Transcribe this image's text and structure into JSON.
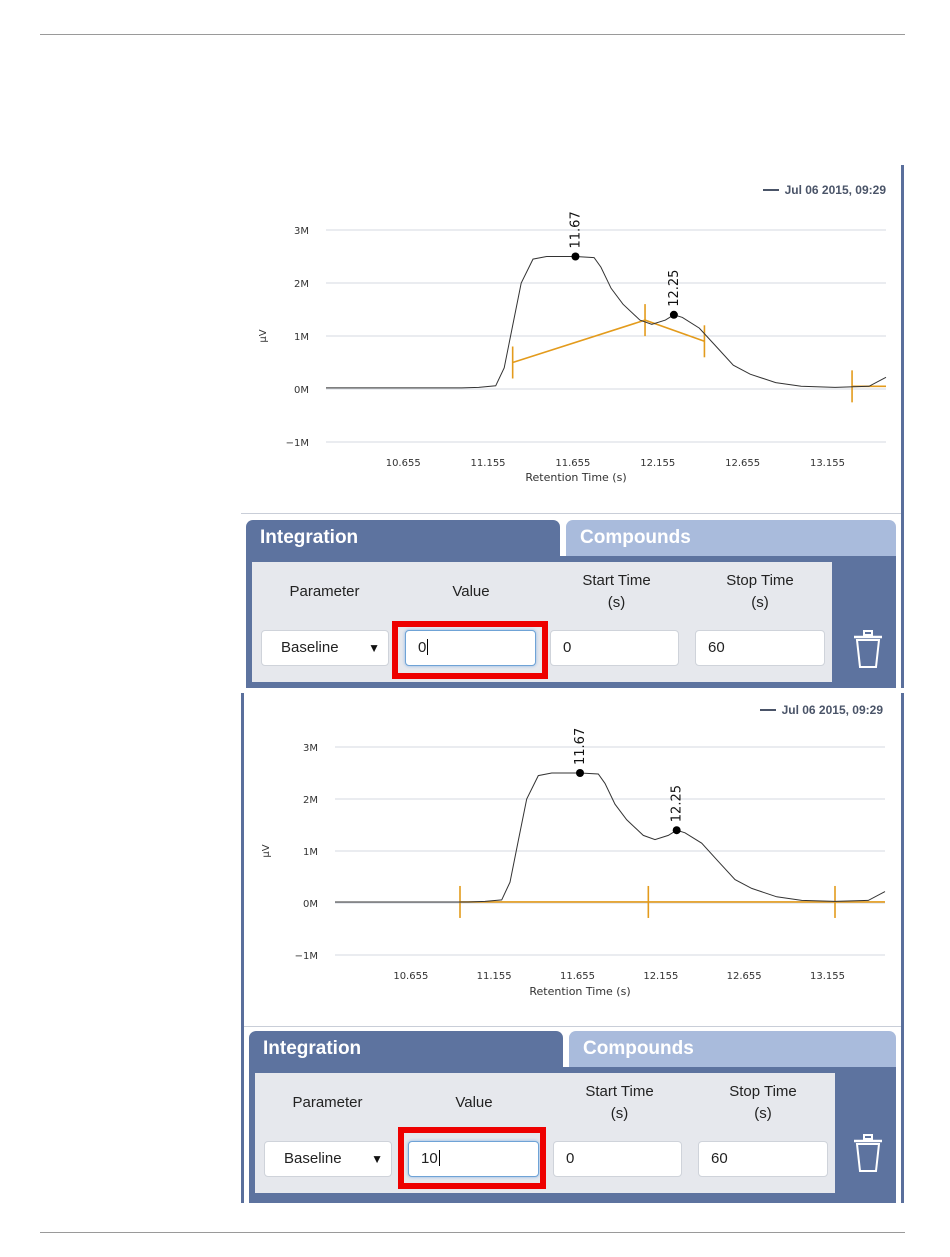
{
  "panels": [
    {
      "legend": "Jul 06 2015, 09:29",
      "tabs": {
        "integration": "Integration",
        "compounds": "Compounds"
      },
      "headers": {
        "parameter": "Parameter",
        "value": "Value",
        "start_time_1": "Start Time",
        "start_time_2": "(s)",
        "stop_time_1": "Stop Time",
        "stop_time_2": "(s)"
      },
      "row": {
        "parameter": "Baseline",
        "value": "0",
        "start": "0",
        "stop": "60"
      },
      "chart_data": {
        "type": "line",
        "xlabel": "Retention Time (s)",
        "ylabel": "µV",
        "x_ticks": [
          "10.655",
          "11.155",
          "11.655",
          "12.155",
          "12.655",
          "13.155"
        ],
        "y_ticks": [
          "3M",
          "2M",
          "1M",
          "0M",
          "−1M"
        ],
        "ylim": [
          -1,
          3
        ],
        "xlim": [
          10.2,
          13.5
        ],
        "peaks": [
          {
            "label": "11.67",
            "x": 11.67,
            "y": 2.5
          },
          {
            "label": "12.25",
            "x": 12.25,
            "y": 1.4
          }
        ],
        "series": [
          {
            "x": [
              10.2,
              11.0,
              11.1,
              11.2,
              11.25,
              11.3,
              11.35,
              11.42,
              11.5,
              11.6,
              11.67,
              11.78,
              11.82,
              11.88,
              11.95,
              12.05,
              12.12,
              12.2,
              12.25,
              12.3,
              12.4,
              12.5,
              12.6,
              12.7,
              12.85,
              13.0,
              13.2,
              13.4,
              13.5
            ],
            "y": [
              0.02,
              0.02,
              0.03,
              0.06,
              0.4,
              1.2,
              2.0,
              2.45,
              2.5,
              2.5,
              2.5,
              2.48,
              2.3,
              1.9,
              1.6,
              1.3,
              1.22,
              1.3,
              1.4,
              1.35,
              1.15,
              0.8,
              0.45,
              0.28,
              0.12,
              0.05,
              0.03,
              0.05,
              0.22
            ]
          }
        ],
        "baseline_segments": [
          {
            "x": [
              11.3,
              12.08,
              12.43
            ],
            "y": [
              0.5,
              1.3,
              0.9
            ]
          },
          {
            "x": [
              13.3,
              13.5
            ],
            "y": [
              0.05,
              0.05
            ]
          }
        ],
        "markers": [
          {
            "x": 11.3
          },
          {
            "x": 12.08
          },
          {
            "x": 12.43
          },
          {
            "x": 13.3
          }
        ]
      }
    },
    {
      "legend": "Jul 06 2015, 09:29",
      "tabs": {
        "integration": "Integration",
        "compounds": "Compounds"
      },
      "headers": {
        "parameter": "Parameter",
        "value": "Value",
        "start_time_1": "Start Time",
        "start_time_2": "(s)",
        "stop_time_1": "Stop Time",
        "stop_time_2": "(s)"
      },
      "row": {
        "parameter": "Baseline",
        "value": "10",
        "start": "0",
        "stop": "60"
      },
      "chart_data": {
        "type": "line",
        "xlabel": "Retention Time (s)",
        "ylabel": "µV",
        "x_ticks": [
          "10.655",
          "11.155",
          "11.655",
          "12.155",
          "12.655",
          "13.155"
        ],
        "y_ticks": [
          "3M",
          "2M",
          "1M",
          "0M",
          "−1M"
        ],
        "ylim": [
          -1,
          3
        ],
        "xlim": [
          10.2,
          13.5
        ],
        "peaks": [
          {
            "label": "11.67",
            "x": 11.67,
            "y": 2.5
          },
          {
            "label": "12.25",
            "x": 12.25,
            "y": 1.4
          }
        ],
        "series": [
          {
            "x": [
              10.2,
              11.0,
              11.1,
              11.2,
              11.25,
              11.3,
              11.35,
              11.42,
              11.5,
              11.6,
              11.67,
              11.78,
              11.82,
              11.88,
              11.95,
              12.05,
              12.12,
              12.2,
              12.25,
              12.3,
              12.4,
              12.5,
              12.6,
              12.7,
              12.85,
              13.0,
              13.2,
              13.4,
              13.5
            ],
            "y": [
              0.02,
              0.02,
              0.03,
              0.06,
              0.4,
              1.2,
              2.0,
              2.45,
              2.5,
              2.5,
              2.5,
              2.48,
              2.3,
              1.9,
              1.6,
              1.3,
              1.22,
              1.3,
              1.4,
              1.35,
              1.15,
              0.8,
              0.45,
              0.28,
              0.12,
              0.05,
              0.03,
              0.05,
              0.22
            ]
          }
        ],
        "baseline_segments": [
          {
            "x": [
              10.95,
              13.5
            ],
            "y": [
              0.02,
              0.02
            ]
          }
        ],
        "markers": [
          {
            "x": 10.95
          },
          {
            "x": 12.08
          },
          {
            "x": 13.2
          }
        ]
      }
    }
  ],
  "colors": {
    "accent": "#5d739f",
    "tab_inactive": "#a9bbdc",
    "baseline": "#e39b1c",
    "highlight": "#ee0000",
    "trace": "#333333"
  }
}
